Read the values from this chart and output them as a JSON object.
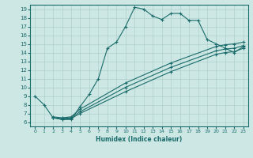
{
  "xlabel": "Humidex (Indice chaleur)",
  "background_color": "#cde8e4",
  "grid_color": "#aed0cc",
  "line_color": "#1a6b6b",
  "xlim": [
    -0.5,
    23.5
  ],
  "ylim": [
    5.5,
    19.5
  ],
  "xticks": [
    0,
    1,
    2,
    3,
    4,
    5,
    6,
    7,
    8,
    9,
    10,
    11,
    12,
    13,
    14,
    15,
    16,
    17,
    18,
    19,
    20,
    21,
    22,
    23
  ],
  "yticks": [
    6,
    7,
    8,
    9,
    10,
    11,
    12,
    13,
    14,
    15,
    16,
    17,
    18,
    19
  ],
  "curve1_x": [
    0,
    1,
    2,
    3,
    4,
    5,
    6,
    7,
    8,
    9,
    10,
    11,
    12,
    13,
    14,
    15,
    16,
    17,
    18,
    19,
    20,
    21,
    22,
    23
  ],
  "curve1_y": [
    9,
    8,
    6.5,
    6.3,
    6.3,
    7.8,
    9.2,
    11,
    14.5,
    15.2,
    17,
    19.2,
    19,
    18.2,
    17.8,
    18.5,
    18.5,
    17.7,
    17.7,
    15.5,
    15,
    14.5,
    14,
    14.7
  ],
  "curve2_x": [
    2,
    3,
    4,
    5,
    10,
    15,
    20,
    21,
    22,
    23
  ],
  "curve2_y": [
    6.5,
    6.3,
    6.4,
    7.0,
    9.5,
    11.8,
    13.8,
    14.0,
    14.1,
    14.5
  ],
  "curve3_x": [
    2,
    3,
    4,
    5,
    10,
    15,
    20,
    21,
    22,
    23
  ],
  "curve3_y": [
    6.5,
    6.4,
    6.5,
    7.2,
    10.0,
    12.3,
    14.2,
    14.4,
    14.5,
    14.8
  ],
  "curve4_x": [
    2,
    3,
    4,
    5,
    10,
    15,
    20,
    21,
    22,
    23
  ],
  "curve4_y": [
    6.6,
    6.5,
    6.6,
    7.5,
    10.5,
    12.8,
    14.7,
    14.9,
    15.0,
    15.2
  ]
}
